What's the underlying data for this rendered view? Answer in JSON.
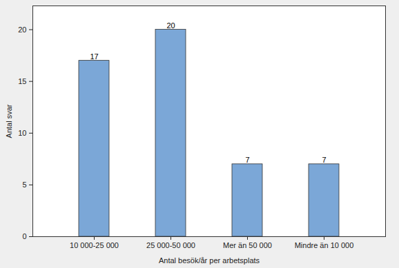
{
  "chart_data": {
    "type": "bar",
    "x_label": "Antal besök/år per arbetsplats",
    "y_label": "Antal svar",
    "categories": [
      "10 000-25 000",
      "25 000-50 000",
      "Mer än 50 000",
      "Mindre än 10 000"
    ],
    "values": [
      17,
      20,
      7,
      7
    ],
    "color": "#7ba7d7",
    "ylim": [
      0,
      22.3
    ],
    "yticks": [
      0,
      5,
      10,
      15,
      20
    ],
    "grid": false,
    "data_labels": true
  }
}
